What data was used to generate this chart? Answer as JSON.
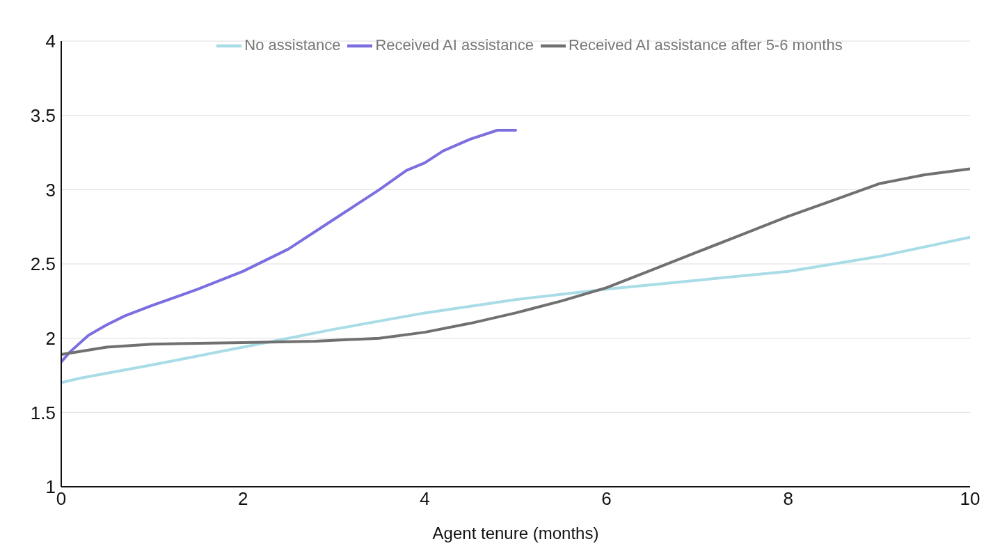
{
  "chart_data": {
    "type": "line",
    "xlabel": "Agent tenure (months)",
    "xlim": [
      0,
      10
    ],
    "xticks": [
      0,
      2,
      4,
      6,
      8,
      10
    ],
    "ylim": [
      1,
      4
    ],
    "yticks": [
      1,
      1.5,
      2,
      2.5,
      3,
      3.5,
      4
    ],
    "grid": "y",
    "legend": "top",
    "marker": "none",
    "line_style": "solid",
    "series": [
      {
        "name": "Received AI assistance",
        "color": "#7b6fe0",
        "x": [
          0,
          0.1,
          0.3,
          0.5,
          0.7,
          1,
          1.5,
          2,
          2.5,
          3,
          3.5,
          3.8,
          4,
          4.2,
          4.5,
          4.8,
          5
        ],
        "values": [
          1.84,
          1.91,
          2.02,
          2.09,
          2.15,
          2.22,
          2.33,
          2.45,
          2.6,
          2.8,
          3.0,
          3.13,
          3.18,
          3.26,
          3.34,
          3.4,
          3.4
        ]
      },
      {
        "name": "No assistance",
        "color": "#a8dce6",
        "x": [
          0,
          0.2,
          1,
          2,
          3,
          4,
          5,
          6,
          7,
          8,
          9,
          10
        ],
        "values": [
          1.7,
          1.73,
          1.82,
          1.94,
          2.06,
          2.17,
          2.26,
          2.33,
          2.39,
          2.45,
          2.55,
          2.68
        ]
      },
      {
        "name": "Received AI assistance after 5-6 months",
        "color": "#707070",
        "x": [
          0,
          0.5,
          1,
          2,
          2.8,
          3.5,
          4,
          4.5,
          5,
          5.5,
          6,
          6.5,
          7,
          7.5,
          8,
          8.5,
          9,
          9.5,
          10
        ],
        "values": [
          1.89,
          1.94,
          1.96,
          1.97,
          1.98,
          2.0,
          2.04,
          2.1,
          2.17,
          2.25,
          2.34,
          2.46,
          2.58,
          2.7,
          2.82,
          2.93,
          3.04,
          3.1,
          3.14
        ]
      }
    ]
  }
}
